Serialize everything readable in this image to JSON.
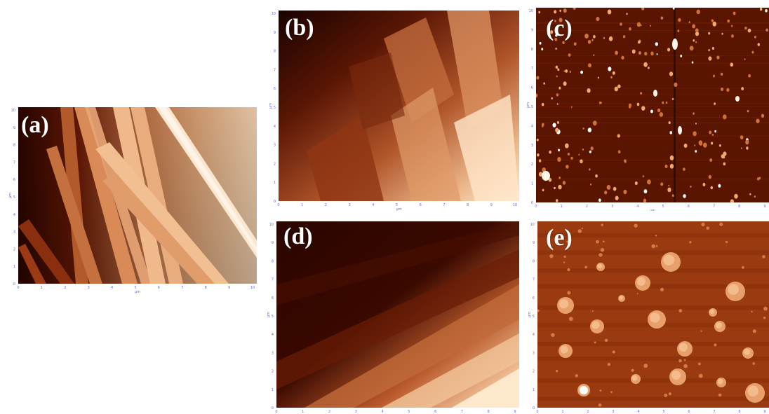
{
  "panels": [
    {
      "id": "a",
      "label": "(a)",
      "unit": "μm",
      "xticks": [
        "0",
        "1",
        "2",
        "3",
        "4",
        "5",
        "6",
        "7",
        "8",
        "9",
        "10"
      ],
      "yticks": [
        "0",
        "1",
        "2",
        "3",
        "4",
        "5",
        "6",
        "7",
        "8",
        "9",
        "10"
      ]
    },
    {
      "id": "b",
      "label": "(b)",
      "unit": "μm",
      "xticks": [
        "0",
        "1",
        "2",
        "3",
        "4",
        "5",
        "6",
        "7",
        "8",
        "9",
        "10"
      ],
      "yticks": [
        "0",
        "1",
        "2",
        "3",
        "4",
        "5",
        "6",
        "7",
        "8",
        "9",
        "10"
      ]
    },
    {
      "id": "c",
      "label": "(c)",
      "unit": "μm",
      "xticks": [
        "0",
        "1",
        "2",
        "3",
        "4",
        "5",
        "6",
        "7",
        "8",
        "9"
      ],
      "yticks": [
        "0",
        "1",
        "2",
        "3",
        "4",
        "5",
        "6",
        "7",
        "8",
        "9",
        "10"
      ]
    },
    {
      "id": "d",
      "label": "(d)",
      "unit": "μm",
      "xticks": [
        "0",
        "1",
        "2",
        "3",
        "4",
        "5",
        "6",
        "7",
        "8",
        "9"
      ],
      "yticks": [
        "0",
        "1",
        "2",
        "3",
        "4",
        "5",
        "6",
        "7",
        "8",
        "9",
        "10"
      ]
    },
    {
      "id": "e",
      "label": "(e)",
      "unit": "μm",
      "xticks": [
        "0",
        "1",
        "2",
        "3",
        "4",
        "5",
        "6",
        "7",
        "8",
        "9"
      ],
      "yticks": [
        "0",
        "1",
        "2",
        "3",
        "4",
        "5",
        "6",
        "7",
        "8",
        "9",
        "10"
      ]
    }
  ],
  "colors": {
    "dark": "#2a0500",
    "mid": "#a8401a",
    "light": "#f5c9a0",
    "highlight": "#fff2e0"
  }
}
